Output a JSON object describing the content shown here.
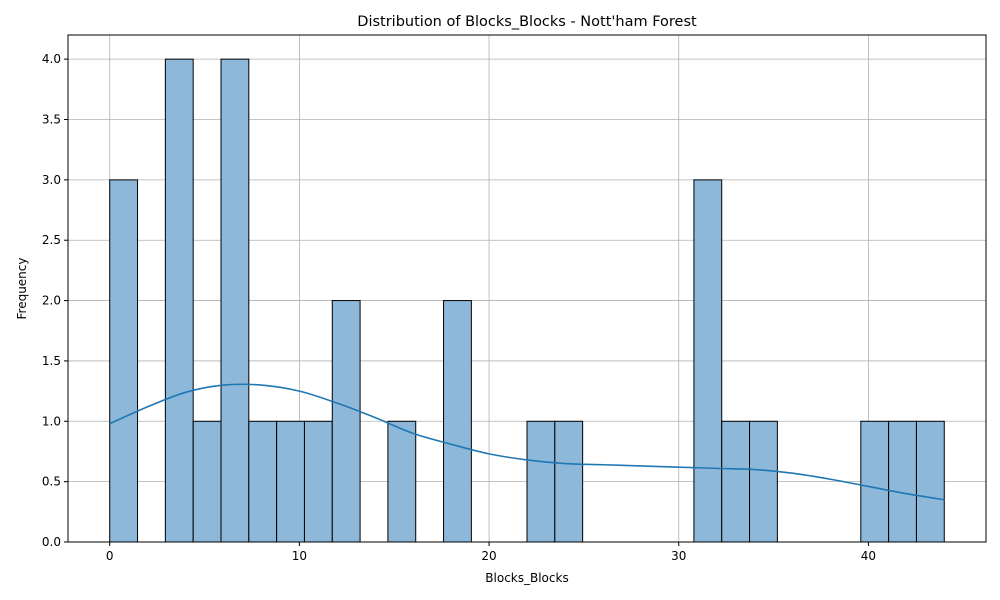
{
  "chart_data": {
    "type": "bar",
    "subtype": "histogram-with-kde",
    "title": "Distribution of Blocks_Blocks - Nott'ham Forest",
    "xlabel": "Blocks_Blocks",
    "ylabel": "Frequency",
    "xlim": [
      -2.2,
      46.2
    ],
    "ylim": [
      0,
      4.2
    ],
    "x_ticks": [
      0,
      10,
      20,
      30,
      40
    ],
    "y_ticks": [
      0.0,
      0.5,
      1.0,
      1.5,
      2.0,
      2.5,
      3.0,
      3.5,
      4.0
    ],
    "y_tick_labels": [
      "0.0",
      "0.5",
      "1.0",
      "1.5",
      "2.0",
      "2.5",
      "3.0",
      "3.5",
      "4.0"
    ],
    "grid": true,
    "bin_edges": [
      0,
      1.4667,
      2.9333,
      4.4,
      5.8667,
      7.3333,
      8.8,
      10.2667,
      11.7333,
      13.2,
      14.6667,
      16.1333,
      17.6,
      19.0667,
      20.5333,
      22.0,
      23.4667,
      24.9333,
      26.4,
      27.8667,
      29.3333,
      30.8,
      32.2667,
      33.7333,
      35.2,
      36.6667,
      38.1333,
      39.6,
      41.0667,
      42.5333,
      44.0
    ],
    "counts": [
      3,
      0,
      4,
      1,
      4,
      1,
      1,
      1,
      2,
      0,
      1,
      0,
      2,
      0,
      0,
      1,
      1,
      0,
      0,
      0,
      0,
      3,
      1,
      1,
      0,
      0,
      0,
      1,
      1,
      1
    ],
    "kde": {
      "x": [
        0,
        2,
        4,
        6,
        8,
        10,
        12,
        14,
        16,
        18,
        20,
        22,
        24,
        26,
        28,
        30,
        32,
        34,
        36,
        38,
        40,
        42,
        44
      ],
      "y": [
        0.98,
        1.12,
        1.24,
        1.3,
        1.3,
        1.25,
        1.15,
        1.03,
        0.9,
        0.81,
        0.73,
        0.68,
        0.65,
        0.64,
        0.63,
        0.62,
        0.61,
        0.6,
        0.57,
        0.52,
        0.46,
        0.4,
        0.35
      ]
    },
    "colors": {
      "bar_fill": "#8db8da",
      "bar_edge": "#000000",
      "kde_line": "#1f77b4",
      "grid": "#b0b0b0"
    }
  }
}
